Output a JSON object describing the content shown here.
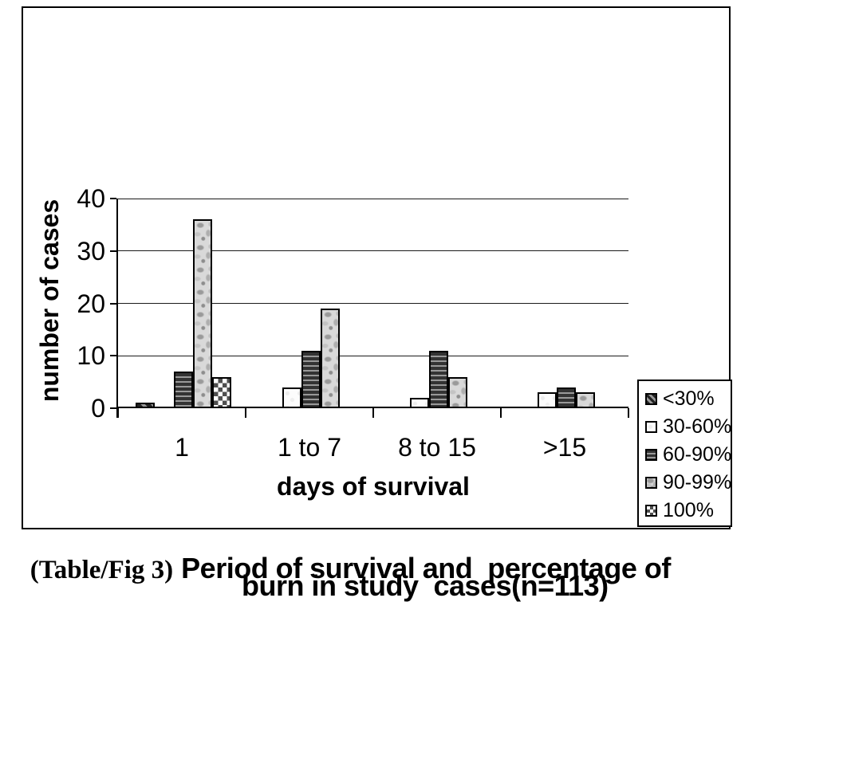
{
  "figure": {
    "caption": {
      "prefix": "(Table/Fig 3)",
      "title_line1": "Period of survival and  percentage of",
      "title_line2": "burn in study  cases(n=113)"
    }
  },
  "chart_data": {
    "type": "bar",
    "title": "(Table/Fig 3) Period of survival and percentage of burn in study cases(n=113)",
    "categories": [
      "1",
      "1 to 7",
      "8 to 15",
      ">15"
    ],
    "series": [
      {
        "name": "<30%",
        "pattern": "diag",
        "values": [
          1,
          0,
          0,
          0
        ]
      },
      {
        "name": "30-60%",
        "pattern": "white",
        "values": [
          0,
          4,
          2,
          3
        ]
      },
      {
        "name": "60-90%",
        "pattern": "hlines",
        "values": [
          7,
          11,
          11,
          4
        ]
      },
      {
        "name": "90-99%",
        "pattern": "marble",
        "values": [
          36,
          19,
          6,
          3
        ]
      },
      {
        "name": "100%",
        "pattern": "checker",
        "values": [
          6,
          0,
          0,
          0
        ]
      }
    ],
    "xlabel": "days of survival",
    "ylabel": "number of cases",
    "ylim": [
      0,
      40
    ],
    "yticks": [
      0,
      10,
      20,
      30,
      40
    ],
    "grid": true,
    "legend_position": "right",
    "total_n": 113,
    "colors": {
      "ink": "#000000",
      "background": "#ffffff"
    }
  }
}
